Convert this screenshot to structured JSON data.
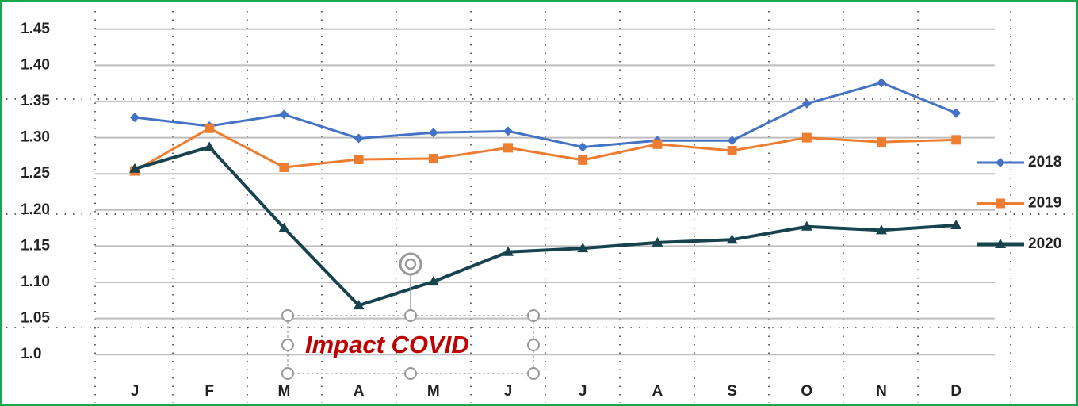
{
  "chart_data": {
    "type": "line",
    "annotation": "Impact COVID",
    "categories": [
      "J",
      "F",
      "M",
      "A",
      "M",
      "J",
      "J",
      "A",
      "S",
      "O",
      "N",
      "D"
    ],
    "series": [
      {
        "name": "2018",
        "color": "#4472c4",
        "marker": "diamond",
        "values": [
          1.328,
          1.316,
          1.332,
          1.299,
          1.307,
          1.309,
          1.287,
          1.296,
          1.296,
          1.347,
          1.376,
          1.334
        ]
      },
      {
        "name": "2019",
        "color": "#ed7d31",
        "marker": "square",
        "values": [
          1.254,
          1.313,
          1.259,
          1.27,
          1.271,
          1.286,
          1.269,
          1.291,
          1.282,
          1.3,
          1.294,
          1.297
        ]
      },
      {
        "name": "2020",
        "color": "#17434e",
        "marker": "triangle",
        "values": [
          1.257,
          1.287,
          1.175,
          1.068,
          1.101,
          1.142,
          1.147,
          1.155,
          1.159,
          1.177,
          1.172,
          1.179
        ]
      }
    ],
    "ylim": [
      0.975,
      1.475
    ],
    "yticks": [
      {
        "value": 1.0,
        "label": "1.0"
      },
      {
        "value": 1.05,
        "label": "1.05"
      },
      {
        "value": 1.1,
        "label": "1.10"
      },
      {
        "value": 1.15,
        "label": "1.15"
      },
      {
        "value": 1.2,
        "label": "1.20"
      },
      {
        "value": 1.25,
        "label": "1.25"
      },
      {
        "value": 1.3,
        "label": "1.30"
      },
      {
        "value": 1.35,
        "label": "1.35"
      },
      {
        "value": 1.4,
        "label": "1.40"
      },
      {
        "value": 1.45,
        "label": "1.45"
      }
    ],
    "grid": true,
    "legend": "right"
  }
}
